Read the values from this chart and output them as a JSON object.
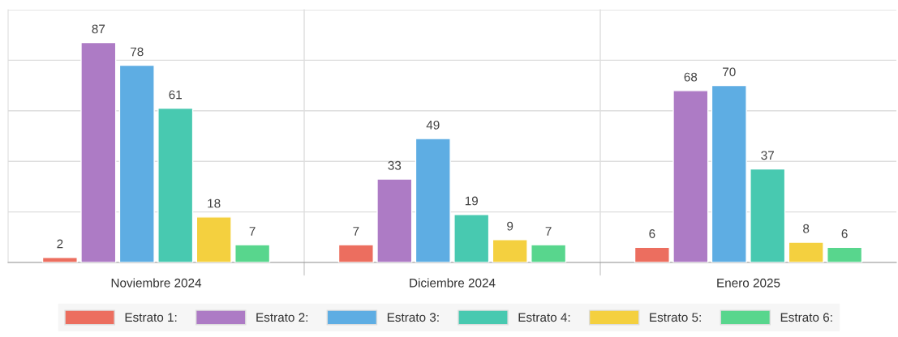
{
  "chart_data": {
    "type": "bar",
    "categories": [
      "Noviembre 2024",
      "Diciembre 2024",
      "Enero 2025"
    ],
    "series": [
      {
        "name": "Estrato 1:",
        "color": "#ec6e5f",
        "values": [
          2,
          7,
          6
        ]
      },
      {
        "name": "Estrato 2:",
        "color": "#ad7bc5",
        "values": [
          87,
          33,
          68
        ]
      },
      {
        "name": "Estrato 3:",
        "color": "#5eade3",
        "values": [
          78,
          49,
          70
        ]
      },
      {
        "name": "Estrato 4:",
        "color": "#48c9b0",
        "values": [
          61,
          19,
          37
        ]
      },
      {
        "name": "Estrato 5:",
        "color": "#f4d03f",
        "values": [
          18,
          9,
          8
        ]
      },
      {
        "name": "Estrato 6:",
        "color": "#58d68d",
        "values": [
          7,
          7,
          6
        ]
      }
    ],
    "ylim": [
      0,
      100
    ],
    "yticks": [
      {
        "value": 0,
        "label": null
      },
      {
        "value": 20,
        "label": null
      },
      {
        "value": 40,
        "label": null
      },
      {
        "value": 60,
        "label": null
      },
      {
        "value": 80,
        "label": null
      },
      {
        "value": 100,
        "label": null
      }
    ],
    "tick_labels": "x",
    "grid": "y",
    "legend": "bottom",
    "data_labels": true
  }
}
